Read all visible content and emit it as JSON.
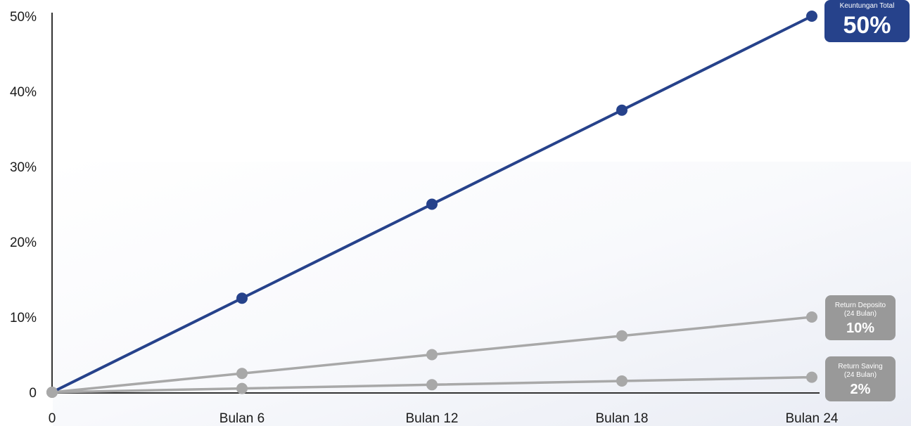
{
  "chart_data": {
    "type": "line",
    "x": [
      "0",
      "Bulan 6",
      "Bulan 12",
      "Bulan 18",
      "Bulan 24"
    ],
    "yticks": [
      "0",
      "10%",
      "20%",
      "30%",
      "40%",
      "50%"
    ],
    "ylim": [
      0,
      50
    ],
    "grid": false,
    "series": [
      {
        "values": [
          0,
          12.5,
          25,
          37.5,
          50
        ],
        "color": "#26428b",
        "callout": {
          "label": "Keuntungan Total",
          "sublabel": "",
          "value": "50%"
        }
      },
      {
        "values": [
          0,
          2.5,
          5,
          7.5,
          10
        ],
        "color": "#a8a8a8",
        "callout": {
          "label": "Return Deposito",
          "sublabel": "(24 Bulan)",
          "value": "10%"
        }
      },
      {
        "values": [
          0,
          0.5,
          1,
          1.5,
          2
        ],
        "color": "#a8a8a8",
        "callout": {
          "label": "Return Saving",
          "sublabel": "(24 Bulan)",
          "value": "2%"
        }
      }
    ]
  },
  "colors": {
    "accent": "#26428b",
    "muted": "#a8a8a8",
    "callout_muted_bg": "#999999"
  }
}
